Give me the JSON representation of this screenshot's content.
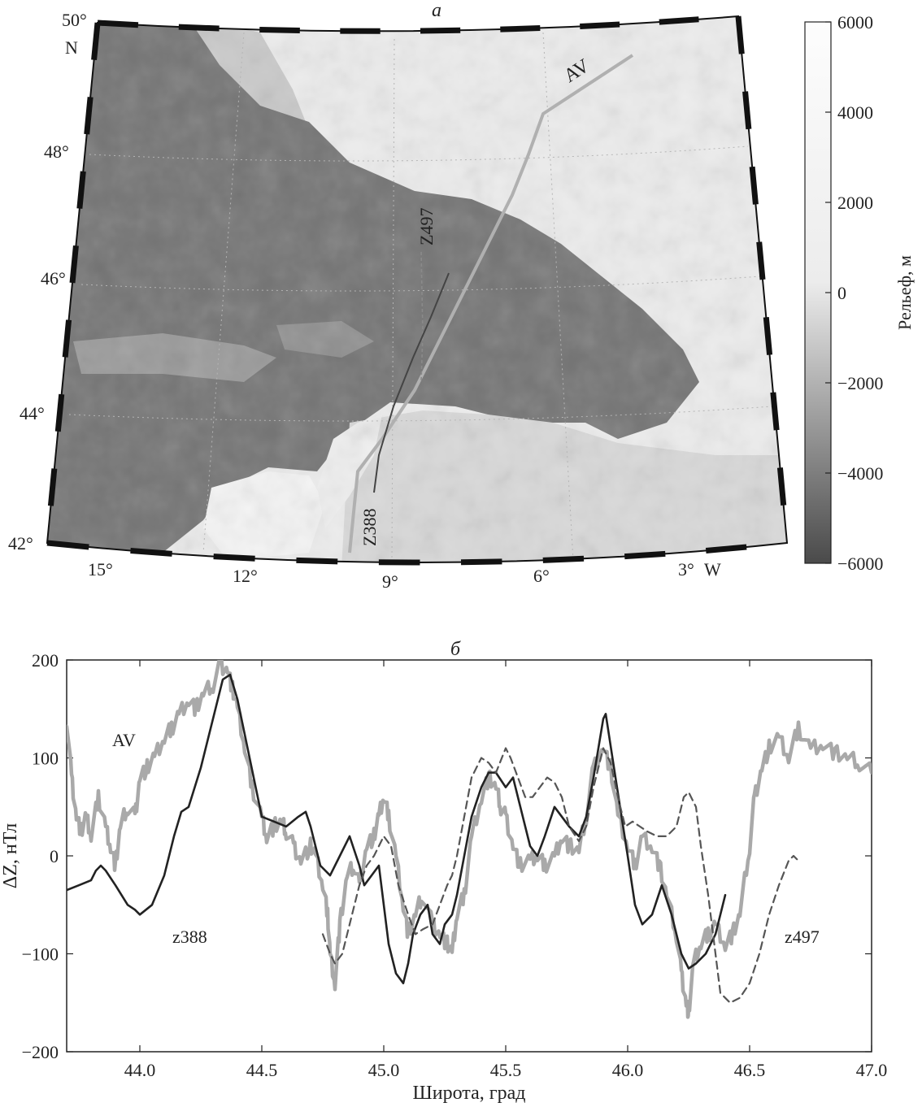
{
  "chart_data": [
    {
      "type": "heatmap",
      "panel_label": "а",
      "lat_ticks": [
        "50°",
        "48°",
        "46°",
        "44°",
        "42°"
      ],
      "lat_hemisphere": "N",
      "lon_ticks": [
        "15°",
        "12°",
        "9°",
        "6°",
        "3°"
      ],
      "lon_hemisphere": "W",
      "colorbar": {
        "label": "Рельеф, м",
        "ticks": [
          "6000",
          "4000",
          "2000",
          "0",
          "−2000",
          "−4000",
          "−6000"
        ],
        "range": [
          -6000,
          6000
        ],
        "colormap": "grayscale",
        "colors": {
          "high": "#fdfdfd",
          "zero": "#e6e6e6",
          "low": "#4a4a4a"
        }
      },
      "track_labels": [
        "AV",
        "Z497",
        "Z388"
      ],
      "track_colors": {
        "AV": "#b0b0b0",
        "Z497": "#8a8a8a",
        "Z388": "#444444"
      }
    },
    {
      "type": "line",
      "panel_label": "б",
      "xlabel": "Широта, град",
      "ylabel": "ΔZ, нТл",
      "xlim": [
        43.7,
        47.0
      ],
      "ylim": [
        -200,
        200
      ],
      "xticks": [
        "44.0",
        "44.5",
        "45.0",
        "45.5",
        "46.0",
        "46.5",
        "47.0"
      ],
      "yticks": [
        "200",
        "100",
        "0",
        "−100",
        "−200"
      ],
      "series": [
        {
          "name": "AV",
          "style": "thick gray",
          "color": "#a9a9a9",
          "x": [
            43.7,
            43.72,
            43.74,
            43.76,
            43.78,
            43.8,
            43.83,
            43.86,
            43.88,
            43.9,
            43.92,
            43.95,
            43.98,
            44.0,
            44.03,
            44.06,
            44.1,
            44.13,
            44.16,
            44.2,
            44.23,
            44.26,
            44.3,
            44.33,
            44.36,
            44.38,
            44.4,
            44.43,
            44.46,
            44.5,
            44.52,
            44.55,
            44.58,
            44.6,
            44.63,
            44.66,
            44.7,
            44.72,
            44.75,
            44.77,
            44.78,
            44.8,
            44.82,
            44.85,
            44.88,
            44.9,
            44.93,
            44.96,
            44.98,
            45.0,
            45.02,
            45.05,
            45.08,
            45.1,
            45.13,
            45.16,
            45.2,
            45.23,
            45.26,
            45.28,
            45.3,
            45.33,
            45.36,
            45.4,
            45.43,
            45.46,
            45.48,
            45.5,
            45.53,
            45.56,
            45.6,
            45.63,
            45.66,
            45.7,
            45.73,
            45.76,
            45.8,
            45.83,
            45.86,
            45.9,
            45.93,
            45.96,
            46.0,
            46.03,
            46.06,
            46.1,
            46.13,
            46.16,
            46.2,
            46.22,
            46.24,
            46.25,
            46.27,
            46.3,
            46.33,
            46.36,
            46.4,
            46.43,
            46.46,
            46.5,
            46.52,
            46.55,
            46.58,
            46.62,
            46.66,
            46.7,
            46.75,
            46.8,
            46.85,
            46.9,
            46.95,
            47.0
          ],
          "y": [
            140,
            80,
            40,
            25,
            40,
            20,
            60,
            30,
            10,
            -10,
            30,
            50,
            40,
            80,
            90,
            100,
            120,
            130,
            145,
            160,
            150,
            165,
            175,
            195,
            190,
            170,
            150,
            110,
            70,
            40,
            20,
            30,
            35,
            25,
            10,
            -5,
            10,
            0,
            -30,
            -60,
            -100,
            -130,
            -70,
            -20,
            -10,
            -30,
            10,
            20,
            40,
            60,
            40,
            0,
            -50,
            -80,
            -60,
            -40,
            -70,
            -80,
            -90,
            -100,
            -60,
            -40,
            20,
            60,
            80,
            70,
            50,
            40,
            10,
            -10,
            -5,
            0,
            -10,
            0,
            20,
            10,
            5,
            40,
            90,
            110,
            90,
            40,
            10,
            -10,
            20,
            10,
            -10,
            -40,
            -80,
            -120,
            -150,
            -160,
            -110,
            -90,
            -80,
            -70,
            -90,
            -80,
            -60,
            10,
            60,
            90,
            110,
            120,
            100,
            130,
            110,
            115,
            105,
            100,
            95,
            85
          ]
        },
        {
          "name": "z388",
          "style": "solid black",
          "color": "#222222",
          "x": [
            43.7,
            43.75,
            43.8,
            43.82,
            43.84,
            43.86,
            43.9,
            43.95,
            43.98,
            44.0,
            44.05,
            44.1,
            44.14,
            44.17,
            44.2,
            44.25,
            44.3,
            44.34,
            44.37,
            44.4,
            44.45,
            44.5,
            44.55,
            44.6,
            44.65,
            44.68,
            44.7,
            44.74,
            44.78,
            44.82,
            44.86,
            44.9,
            44.92,
            44.95,
            44.98,
            45.0,
            45.02,
            45.05,
            45.08,
            45.1,
            45.12,
            45.15,
            45.18,
            45.2,
            45.23,
            45.25,
            45.28,
            45.3,
            45.33,
            45.36,
            45.4,
            45.43,
            45.46,
            45.5,
            45.53,
            45.56,
            45.6,
            45.63,
            45.66,
            45.7,
            45.73,
            45.76,
            45.8,
            45.83,
            45.86,
            45.9,
            45.91,
            45.95,
            46.0,
            46.03,
            46.06,
            46.1,
            46.14,
            46.18,
            46.22,
            46.25,
            46.28,
            46.32,
            46.36,
            46.4
          ],
          "y": [
            -35,
            -30,
            -25,
            -15,
            -10,
            -15,
            -30,
            -50,
            -55,
            -60,
            -50,
            -20,
            20,
            45,
            50,
            90,
            140,
            180,
            185,
            160,
            100,
            40,
            35,
            30,
            40,
            45,
            30,
            -10,
            -20,
            0,
            20,
            -10,
            -30,
            -20,
            -10,
            -50,
            -90,
            -120,
            -130,
            -110,
            -80,
            -60,
            -50,
            -80,
            -90,
            -70,
            -60,
            -40,
            0,
            40,
            70,
            85,
            85,
            70,
            80,
            50,
            10,
            0,
            20,
            50,
            40,
            30,
            20,
            40,
            80,
            140,
            145,
            80,
            0,
            -50,
            -70,
            -60,
            -30,
            -60,
            -100,
            -115,
            -110,
            -100,
            -80,
            -40
          ]
        },
        {
          "name": "z497",
          "style": "dashed",
          "color": "#555555",
          "x": [
            44.75,
            44.78,
            44.8,
            44.83,
            44.86,
            44.9,
            44.93,
            44.96,
            45.0,
            45.03,
            45.06,
            45.1,
            45.13,
            45.16,
            45.2,
            45.23,
            45.26,
            45.28,
            45.3,
            45.33,
            45.36,
            45.4,
            45.43,
            45.46,
            45.5,
            45.52,
            45.55,
            45.58,
            45.61,
            45.64,
            45.67,
            45.7,
            45.73,
            45.76,
            45.8,
            45.83,
            45.86,
            45.9,
            45.93,
            45.96,
            45.99,
            46.02,
            46.05,
            46.08,
            46.12,
            46.16,
            46.2,
            46.23,
            46.25,
            46.28,
            46.3,
            46.33,
            46.36,
            46.38,
            46.42,
            46.46,
            46.5,
            46.54,
            46.58,
            46.62,
            46.66,
            46.68,
            46.7
          ],
          "y": [
            -80,
            -100,
            -110,
            -100,
            -70,
            -30,
            -10,
            0,
            20,
            10,
            -30,
            -60,
            -80,
            -75,
            -70,
            -50,
            -30,
            -20,
            0,
            40,
            80,
            100,
            95,
            85,
            110,
            100,
            80,
            60,
            60,
            70,
            80,
            75,
            60,
            30,
            15,
            30,
            70,
            110,
            95,
            60,
            30,
            35,
            30,
            25,
            20,
            20,
            30,
            60,
            65,
            50,
            10,
            -40,
            -100,
            -140,
            -150,
            -145,
            -130,
            -100,
            -60,
            -30,
            -5,
            0,
            -5
          ]
        }
      ],
      "annotations": [
        "AV",
        "z388",
        "z497"
      ]
    }
  ]
}
